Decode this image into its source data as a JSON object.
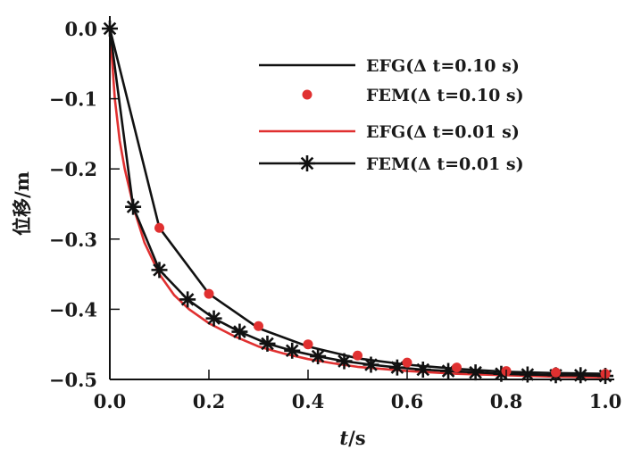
{
  "chart_data": {
    "type": "line",
    "title": "",
    "xlabel": "t/s",
    "xlabel_italic_part": "t",
    "xlabel_unit": "/s",
    "ylabel": "位移/m",
    "xlim": [
      0.0,
      1.0
    ],
    "ylim": [
      -0.5,
      0.0
    ],
    "x_ticks": [
      0.0,
      0.2,
      0.4,
      0.6,
      0.8,
      1.0
    ],
    "x_tick_labels": [
      "0.0",
      "0.2",
      "0.4",
      "0.6",
      "0.8",
      "1.0"
    ],
    "y_ticks": [
      0.0,
      -0.1,
      -0.2,
      -0.3,
      -0.4,
      -0.5
    ],
    "y_tick_labels": [
      "0.0",
      "−0.1",
      "−0.2",
      "−0.3",
      "−0.4",
      "−0.5"
    ],
    "grid": false,
    "legend_position": "top-right",
    "series": [
      {
        "name": "EFG(Δ t=0.10 s)",
        "style": "line",
        "color": "#111111",
        "x": [
          0.0,
          0.1,
          0.2,
          0.3,
          0.4,
          0.5,
          0.6,
          0.7,
          0.8,
          0.9,
          1.0
        ],
        "y": [
          0.0,
          -0.284,
          -0.378,
          -0.427,
          -0.453,
          -0.47,
          -0.479,
          -0.485,
          -0.489,
          -0.491,
          -0.492
        ]
      },
      {
        "name": "FEM(Δ t=0.10 s)",
        "style": "marker-dot",
        "color": "#e03030",
        "x": [
          0.1,
          0.2,
          0.3,
          0.4,
          0.5,
          0.6,
          0.7,
          0.8,
          0.9,
          1.0
        ],
        "y": [
          -0.284,
          -0.378,
          -0.424,
          -0.45,
          -0.466,
          -0.476,
          -0.483,
          -0.488,
          -0.49,
          -0.492
        ]
      },
      {
        "name": "EFG(Δ t=0.01 s)",
        "style": "line",
        "color": "#e03030",
        "x": [
          0.0,
          0.01,
          0.02,
          0.03,
          0.05,
          0.07,
          0.1,
          0.13,
          0.16,
          0.2,
          0.25,
          0.3,
          0.35,
          0.4,
          0.45,
          0.5,
          0.6,
          0.7,
          0.8,
          0.9,
          1.0
        ],
        "y": [
          0.0,
          -0.1,
          -0.16,
          -0.2,
          -0.26,
          -0.305,
          -0.35,
          -0.38,
          -0.4,
          -0.42,
          -0.438,
          -0.453,
          -0.463,
          -0.471,
          -0.477,
          -0.482,
          -0.488,
          -0.492,
          -0.494,
          -0.496,
          -0.497
        ]
      },
      {
        "name": "FEM(Δ t=0.01 s)",
        "style": "line-star",
        "color": "#111111",
        "x": [
          0.0,
          0.047,
          0.1,
          0.157,
          0.21,
          0.262,
          0.318,
          0.368,
          0.42,
          0.473,
          0.527,
          0.58,
          0.632,
          0.683,
          0.738,
          0.79,
          0.843,
          0.9,
          0.95,
          1.0
        ],
        "y": [
          0.0,
          -0.254,
          -0.344,
          -0.386,
          -0.413,
          -0.432,
          -0.449,
          -0.459,
          -0.467,
          -0.474,
          -0.479,
          -0.483,
          -0.486,
          -0.488,
          -0.49,
          -0.492,
          -0.493,
          -0.494,
          -0.494,
          -0.495
        ]
      }
    ]
  }
}
